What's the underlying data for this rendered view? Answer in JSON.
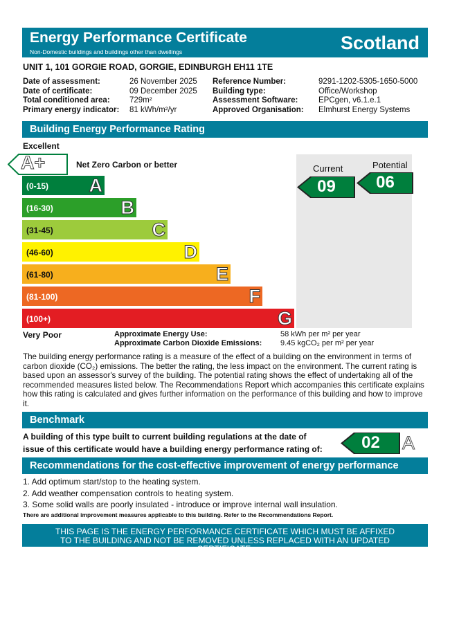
{
  "header": {
    "title": "Energy Performance Certificate",
    "subtitle": "Non-Domestic buildings and buildings other than dwellings",
    "region": "Scotland"
  },
  "address": "UNIT 1, 101 GORGIE ROAD, GORGIE, EDINBURGH EH11 1TE",
  "details_left": [
    {
      "label": "Date of assessment:",
      "value": "26 November 2025"
    },
    {
      "label": "Date of certificate:",
      "value": "09 December 2025"
    },
    {
      "label": "Total conditioned area:",
      "value": "729m²"
    },
    {
      "label": "Primary energy indicator:",
      "value": "81 kWh/m²/yr"
    }
  ],
  "details_right": [
    {
      "label": "Reference Number:",
      "value": "9291-1202-5305-1650-5000"
    },
    {
      "label": "Building type:",
      "value": "Office/Workshop"
    },
    {
      "label": "Assessment Software:",
      "value": "EPCgen, v6.1.e.1"
    },
    {
      "label": "Approved Organisation:",
      "value": "Elmhurst Energy Systems"
    }
  ],
  "rating": {
    "section_title": "Building Energy Performance Rating",
    "top_label": "Excellent",
    "bottom_label": "Very Poor",
    "aplus": {
      "letter": "A+",
      "text": "Net Zero Carbon or better"
    },
    "bands": [
      {
        "range": "(0-15)",
        "letter": "A",
        "color": "#007f3d"
      },
      {
        "range": "(16-30)",
        "letter": "B",
        "color": "#2c9f29"
      },
      {
        "range": "(31-45)",
        "letter": "C",
        "color": "#9dcb3c"
      },
      {
        "range": "(46-60)",
        "letter": "D",
        "color": "#fff200"
      },
      {
        "range": "(61-80)",
        "letter": "E",
        "color": "#f7af1d"
      },
      {
        "range": "(81-100)",
        "letter": "F",
        "color": "#ed6823"
      },
      {
        "range": "(100+)",
        "letter": "G",
        "color": "#e31d23"
      }
    ],
    "current_label": "Current",
    "current_value": "09",
    "potential_label": "Potential",
    "potential_value": "06",
    "energy_use_label": "Approximate Energy Use:",
    "energy_use_value": "58 kWh per m² per year",
    "co2_label": "Approximate Carbon Dioxide Emissions:",
    "co2_value": "9.45 kgCO₂ per m² per year"
  },
  "description": "The building energy performance rating is a measure of the effect of a building on the environment in terms of carbon dioxide (CO₂) emissions. The better the rating, the less impact on the environment. The current rating is based upon an assessor's survey of the building. The potential rating shows the effect of undertaking all of the recommended measures listed below. The Recommendations Report which accompanies this certificate explains how this rating is calculated and gives further information on the performance of this building and how to improve it.",
  "benchmark": {
    "title": "Benchmark",
    "line1": "A building of this type built to current building regulations at the date of",
    "line2": "issue of this certificate would have a building energy performance rating of:",
    "value": "02",
    "letter": "A"
  },
  "recommendations": {
    "title": "Recommendations for the cost-effective improvement of energy performance",
    "items": [
      "1. Add optimum start/stop to the heating system.",
      "2. Add weather compensation controls to heating system.",
      "3. Some solid walls are poorly insulated - introduce or improve internal wall insulation."
    ],
    "note": "There are additional improvement measures applicable to this building. Refer to the Recommendations Report."
  },
  "footer": "THIS PAGE IS THE ENERGY PERFORMANCE CERTIFICATE WHICH MUST BE AFFIXED TO THE BUILDING AND NOT BE REMOVED UNLESS REPLACED WITH AN UPDATED CERTIFICATE."
}
